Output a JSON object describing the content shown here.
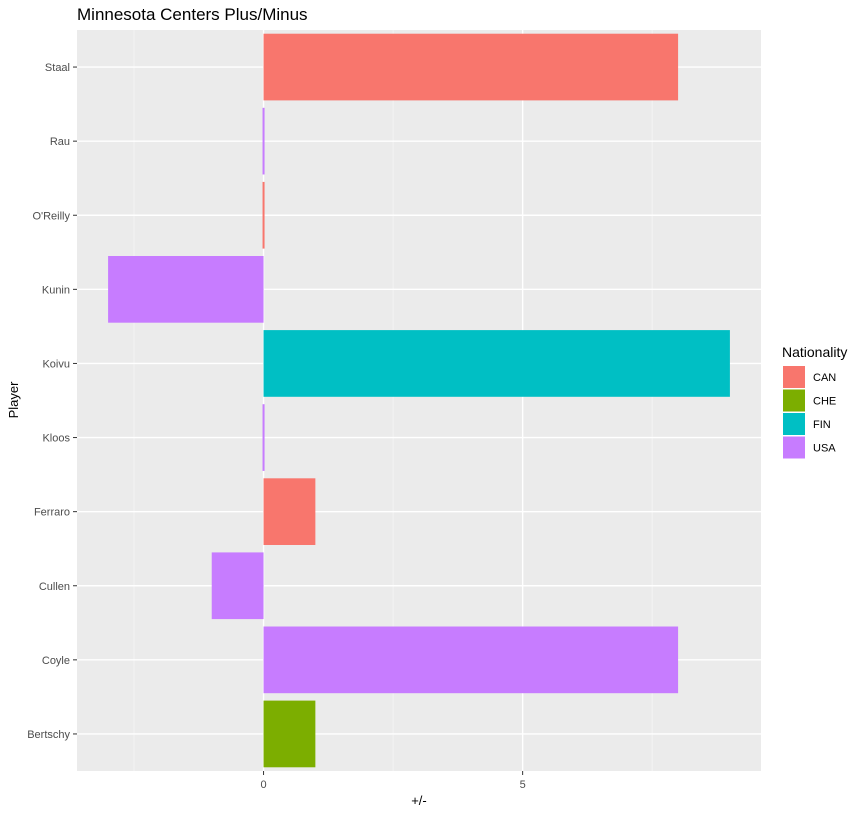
{
  "chart_data": {
    "type": "bar",
    "orientation": "horizontal",
    "title": "Minnesota Centers Plus/Minus",
    "xlabel": "+/-",
    "ylabel": "Player",
    "xlim": [
      -3.6,
      9.6
    ],
    "x_ticks": [
      0,
      5
    ],
    "x_tick_labels": [
      "0",
      "5"
    ],
    "grid": true,
    "legend_position": "right",
    "categories": [
      "Staal",
      "Rau",
      "O'Reilly",
      "Kunin",
      "Koivu",
      "Kloos",
      "Ferraro",
      "Cullen",
      "Coyle",
      "Bertschy"
    ],
    "values": [
      8,
      0,
      0,
      -3,
      9,
      0,
      1,
      -1,
      8,
      1
    ],
    "groups": [
      "CAN",
      "USA",
      "CAN",
      "USA",
      "FIN",
      "USA",
      "CAN",
      "USA",
      "USA",
      "CHE"
    ],
    "legend": {
      "title": "Nationality",
      "entries": [
        {
          "name": "CAN",
          "color": "#F8766D"
        },
        {
          "name": "CHE",
          "color": "#7CAE00"
        },
        {
          "name": "FIN",
          "color": "#00BFC4"
        },
        {
          "name": "USA",
          "color": "#C77CFF"
        }
      ]
    }
  }
}
